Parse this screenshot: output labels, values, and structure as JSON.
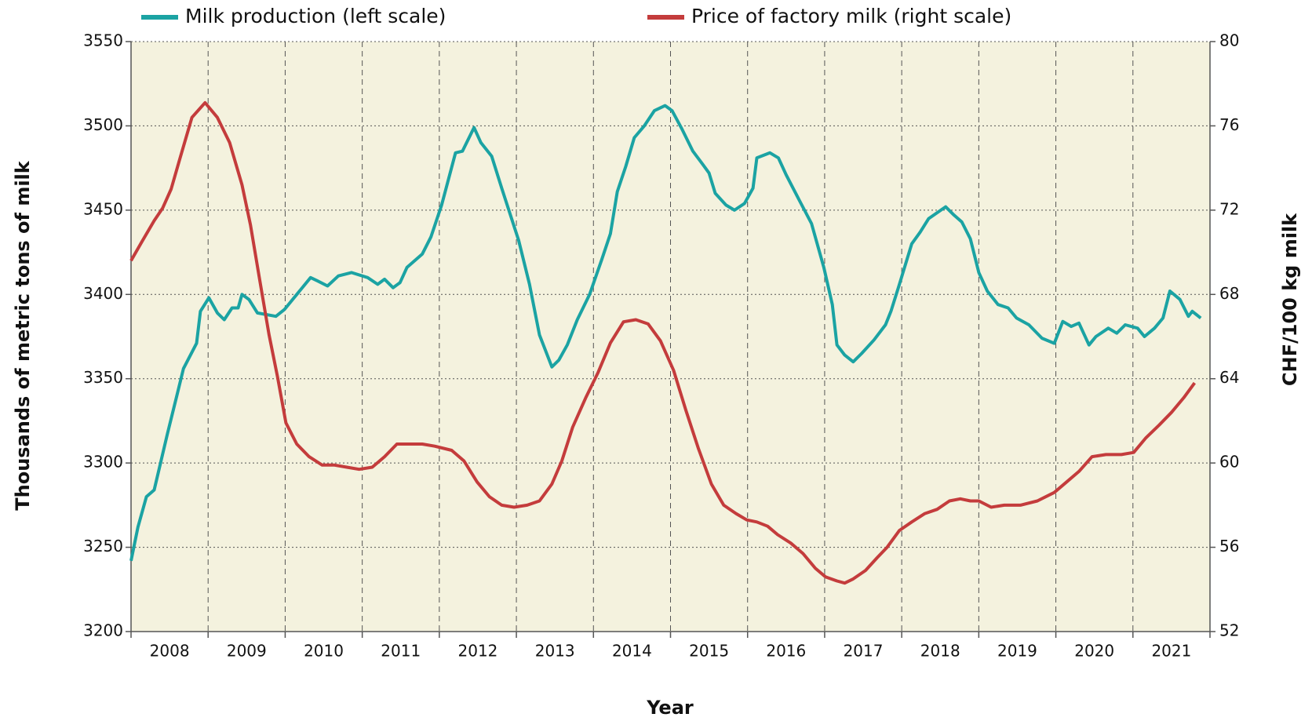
{
  "chart_data": {
    "type": "line",
    "xlabel": "Year",
    "ylabel": "Thousands of metric tons of milk",
    "y2label": "CHF/100 kg milk",
    "categories": [
      "2008",
      "2009",
      "2010",
      "2011",
      "2012",
      "2013",
      "2014",
      "2015",
      "2016",
      "2017",
      "2018",
      "2019",
      "2020",
      "2021"
    ],
    "xlim": [
      2008,
      2022
    ],
    "xticks": [
      2008,
      2009,
      2010,
      2011,
      2012,
      2013,
      2014,
      2015,
      2016,
      2017,
      2018,
      2019,
      2020,
      2021,
      2022
    ],
    "ylim": [
      3200,
      3550
    ],
    "yticks": [
      3200,
      3250,
      3300,
      3350,
      3400,
      3450,
      3500,
      3550
    ],
    "y2lim": [
      52,
      80
    ],
    "y2ticks": [
      52,
      56,
      60,
      64,
      68,
      72,
      76,
      80
    ],
    "grid": true,
    "legend": "top",
    "background": "#f4f2de",
    "series": [
      {
        "name": "Milk production (left scale)",
        "color": "#1ba3a3",
        "axis": "y",
        "x": [
          2008.0,
          2008.09,
          2008.2,
          2008.3,
          2008.47,
          2008.6,
          2008.68,
          2008.85,
          2008.9,
          2009.01,
          2009.12,
          2009.21,
          2009.31,
          2009.39,
          2009.44,
          2009.53,
          2009.64,
          2009.88,
          2009.99,
          2010.15,
          2010.33,
          2010.42,
          2010.55,
          2010.69,
          2010.86,
          2011.07,
          2011.2,
          2011.29,
          2011.4,
          2011.49,
          2011.58,
          2011.78,
          2011.89,
          2012.03,
          2012.21,
          2012.3,
          2012.45,
          2012.54,
          2012.68,
          2012.81,
          2013.03,
          2013.17,
          2013.3,
          2013.46,
          2013.55,
          2013.66,
          2013.79,
          2013.95,
          2014.11,
          2014.22,
          2014.31,
          2014.42,
          2014.53,
          2014.66,
          2014.79,
          2014.93,
          2015.02,
          2015.15,
          2015.29,
          2015.42,
          2015.5,
          2015.58,
          2015.72,
          2015.83,
          2015.96,
          2016.07,
          2016.12,
          2016.29,
          2016.4,
          2016.5,
          2016.67,
          2016.83,
          2016.99,
          2017.1,
          2017.16,
          2017.26,
          2017.37,
          2017.48,
          2017.64,
          2017.79,
          2017.86,
          2017.97,
          2018.13,
          2018.24,
          2018.35,
          2018.57,
          2018.68,
          2018.78,
          2018.89,
          2019.0,
          2019.11,
          2019.25,
          2019.38,
          2019.49,
          2019.65,
          2019.82,
          2019.98,
          2020.09,
          2020.2,
          2020.3,
          2020.43,
          2020.52,
          2020.68,
          2020.79,
          2020.9,
          2021.06,
          2021.15,
          2021.28,
          2021.39,
          2021.48,
          2021.61,
          2021.72,
          2021.77,
          2021.88
        ],
        "values": [
          3242,
          3262,
          3280,
          3284,
          3317,
          3341,
          3356,
          3371,
          3390,
          3398,
          3389,
          3385,
          3392,
          3392,
          3400,
          3397,
          3389,
          3387,
          3391,
          3400,
          3410,
          3408,
          3405,
          3411,
          3413,
          3410,
          3406,
          3409,
          3404,
          3407,
          3416,
          3424,
          3434,
          3453,
          3484,
          3485,
          3499,
          3490,
          3482,
          3463,
          3432,
          3406,
          3376,
          3357,
          3361,
          3370,
          3385,
          3400,
          3421,
          3436,
          3461,
          3476,
          3493,
          3500,
          3509,
          3512,
          3509,
          3498,
          3485,
          3477,
          3472,
          3460,
          3453,
          3450,
          3454,
          3463,
          3481,
          3484,
          3481,
          3471,
          3456,
          3442,
          3416,
          3394,
          3370,
          3364,
          3360,
          3365,
          3373,
          3382,
          3390,
          3406,
          3430,
          3437,
          3445,
          3452,
          3447,
          3443,
          3433,
          3413,
          3402,
          3394,
          3392,
          3386,
          3382,
          3374,
          3371,
          3384,
          3381,
          3383,
          3370,
          3375,
          3380,
          3377,
          3382,
          3380,
          3375,
          3380,
          3386,
          3402,
          3397,
          3387,
          3390,
          3386
        ]
      },
      {
        "name": "Price of factory milk (right scale)",
        "color": "#c43c3c",
        "axis": "y2",
        "x": [
          2008.0,
          2008.14,
          2008.3,
          2008.41,
          2008.52,
          2008.63,
          2008.79,
          2008.96,
          2009.12,
          2009.28,
          2009.44,
          2009.55,
          2009.66,
          2009.79,
          2009.9,
          2010.01,
          2010.15,
          2010.31,
          2010.48,
          2010.64,
          2010.8,
          2010.96,
          2011.13,
          2011.29,
          2011.45,
          2011.62,
          2011.78,
          2011.94,
          2012.16,
          2012.32,
          2012.49,
          2012.65,
          2012.81,
          2012.97,
          2013.14,
          2013.3,
          2013.46,
          2013.59,
          2013.73,
          2013.9,
          2014.06,
          2014.22,
          2014.39,
          2014.55,
          2014.71,
          2014.87,
          2015.04,
          2015.2,
          2015.36,
          2015.53,
          2015.69,
          2015.85,
          2015.99,
          2016.12,
          2016.26,
          2016.39,
          2016.56,
          2016.72,
          2016.88,
          2017.01,
          2017.16,
          2017.26,
          2017.37,
          2017.53,
          2017.68,
          2017.81,
          2017.97,
          2018.13,
          2018.3,
          2018.46,
          2018.62,
          2018.76,
          2018.89,
          2019.0,
          2019.16,
          2019.33,
          2019.54,
          2019.76,
          2019.98,
          2020.14,
          2020.3,
          2020.47,
          2020.65,
          2020.85,
          2021.01,
          2021.17,
          2021.34,
          2021.5,
          2021.66,
          2021.8
        ],
        "values": [
          69.6,
          70.5,
          71.5,
          72.1,
          73.0,
          74.4,
          76.4,
          77.1,
          76.4,
          75.2,
          73.2,
          71.3,
          68.9,
          66.1,
          64.1,
          61.9,
          60.9,
          60.3,
          59.9,
          59.9,
          59.8,
          59.7,
          59.8,
          60.3,
          60.9,
          60.9,
          60.9,
          60.8,
          60.6,
          60.1,
          59.1,
          58.4,
          58.0,
          57.9,
          58.0,
          58.2,
          59.0,
          60.1,
          61.7,
          63.1,
          64.3,
          65.7,
          66.7,
          66.8,
          66.6,
          65.8,
          64.4,
          62.5,
          60.7,
          59.0,
          58.0,
          57.6,
          57.3,
          57.2,
          57.0,
          56.6,
          56.2,
          55.7,
          55.0,
          54.6,
          54.4,
          54.3,
          54.5,
          54.9,
          55.5,
          56.0,
          56.8,
          57.2,
          57.6,
          57.8,
          58.2,
          58.3,
          58.2,
          58.2,
          57.9,
          58.0,
          58.0,
          58.2,
          58.6,
          59.1,
          59.6,
          60.3,
          60.4,
          60.4,
          60.5,
          61.2,
          61.8,
          62.4,
          63.1,
          63.8
        ]
      }
    ]
  }
}
